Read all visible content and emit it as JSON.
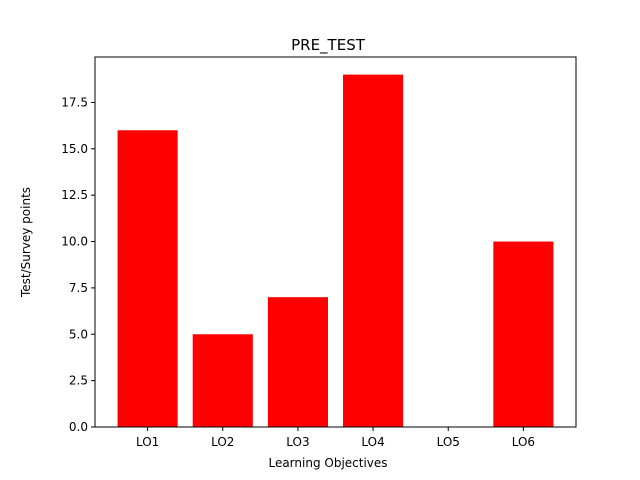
{
  "chart_data": {
    "type": "bar",
    "title": "PRE_TEST",
    "xlabel": "Learning Objectives",
    "ylabel": "Test/Survey points",
    "categories": [
      "LO1",
      "LO2",
      "LO3",
      "LO4",
      "LO5",
      "LO6"
    ],
    "values": [
      16,
      5,
      7,
      19,
      0,
      10
    ],
    "ylim": [
      0,
      19.95
    ],
    "yticks": [
      0.0,
      2.5,
      5.0,
      7.5,
      10.0,
      12.5,
      15.0,
      17.5
    ],
    "ytick_labels": [
      "0.0",
      "2.5",
      "5.0",
      "7.5",
      "10.0",
      "12.5",
      "15.0",
      "17.5"
    ],
    "bar_color": "#ff0000",
    "grid": false,
    "legend": "none"
  }
}
